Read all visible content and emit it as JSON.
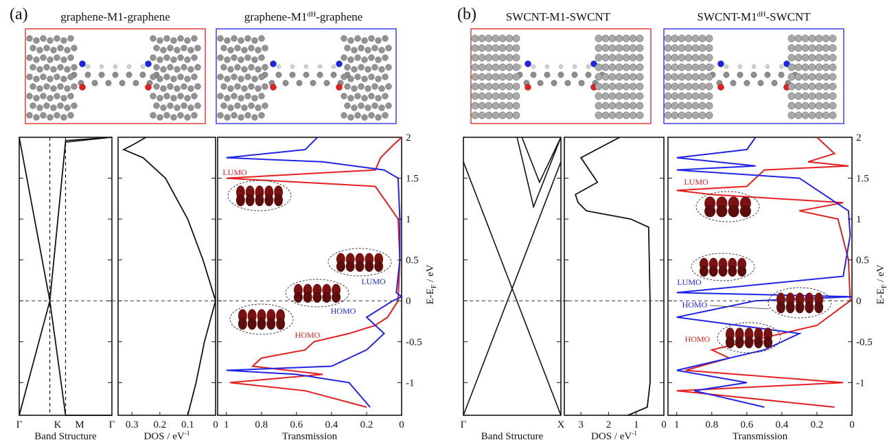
{
  "colors": {
    "red": "#e41f1f",
    "blue": "#1f24e6",
    "black": "#111111",
    "orbital": "#7a1212"
  },
  "panels": [
    {
      "label": "(a)",
      "systems": [
        {
          "title": "graphene-M1-graphene",
          "title_main": "graphene-M1",
          "title_sup": "",
          "title_tail": "-graphene",
          "frame_color": "#e41f1f"
        },
        {
          "title": "graphene-M1dH-graphene",
          "title_main": "graphene-M1",
          "title_sup": "dH",
          "title_tail": "-graphene",
          "frame_color": "#1f24e6"
        }
      ],
      "band_xticks": [
        "Γ",
        "K",
        "M",
        "Γ"
      ],
      "band_xlabel": "Band Structure",
      "dos_xticks": [
        "0.3",
        "0.2",
        "0.1",
        "0"
      ],
      "dos_xlabel": "DOS / eV",
      "dos_xlabel_sup": "-1",
      "trans_xticks": [
        "1",
        "0.8",
        "0.6",
        "0.4",
        "0.2",
        "0"
      ],
      "trans_xlabel": "Transmission",
      "yticks": [
        "2",
        "1.5",
        "1",
        "0.5",
        "0",
        "-0.5",
        "-1"
      ],
      "ylabel": "E-E",
      "ylabel_sub": "F",
      "ylabel_unit": " / eV",
      "annotations": [
        {
          "text": "LUMO",
          "color": "#e41f1f"
        },
        {
          "text": "LUMO",
          "color": "#1f24e6"
        },
        {
          "text": "HOMO",
          "color": "#1f24e6"
        },
        {
          "text": "HOMO",
          "color": "#e41f1f"
        }
      ]
    },
    {
      "label": "(b)",
      "systems": [
        {
          "title": "SWCNT-M1-SWCNT",
          "title_main": "SWCNT-M1",
          "title_sup": "",
          "title_tail": "-SWCNT",
          "frame_color": "#e41f1f"
        },
        {
          "title": "SWCNT-M1dH-SWCNT",
          "title_main": "SWCNT-M1",
          "title_sup": "dH",
          "title_tail": "-SWCNT",
          "frame_color": "#1f24e6"
        }
      ],
      "band_xticks": [
        "Γ",
        "X"
      ],
      "band_xlabel": "Band Structure",
      "dos_xticks": [
        "3",
        "2",
        "1",
        "0"
      ],
      "dos_xlabel": "DOS / eV",
      "dos_xlabel_sup": "-1",
      "trans_xticks": [
        "1",
        "0.8",
        "0.6",
        "0.4",
        "0.2",
        "0"
      ],
      "trans_xlabel": "Transmission",
      "yticks": [
        "2",
        "1.5",
        "1",
        "0.5",
        "0",
        "-0.5",
        "-1"
      ],
      "ylabel": "E-E",
      "ylabel_sub": "F",
      "ylabel_unit": " / eV",
      "annotations": [
        {
          "text": "LUMO",
          "color": "#e41f1f"
        },
        {
          "text": "LUMO",
          "color": "#1f24e6"
        },
        {
          "text": "HOMO",
          "color": "#1f24e6"
        },
        {
          "text": "HOMO",
          "color": "#e41f1f"
        }
      ]
    }
  ],
  "chart_data": [
    {
      "panel": "(a)",
      "type": "line",
      "ylim": [
        -1.4,
        2.0
      ],
      "fermi_level": 0,
      "band_structure": {
        "xlabel": "Band Structure",
        "k_points": [
          "Γ",
          "K",
          "M",
          "Γ"
        ],
        "bands": [
          {
            "k": [
              0,
              0.33,
              0.5,
              1.0
            ],
            "E": [
              -1.4,
              0.0,
              1.96,
              2.0
            ]
          },
          {
            "k": [
              0,
              0.33,
              0.5,
              1.0
            ],
            "E": [
              2.0,
              0.0,
              -1.4,
              -1.4
            ]
          },
          {
            "k": [
              0,
              0.33,
              0.5,
              1.0
            ],
            "E": [
              -1.4,
              0.0,
              1.94,
              2.0
            ]
          },
          {
            "k": [
              0,
              0.33,
              0.5,
              1.0
            ],
            "E": [
              2.0,
              0.0,
              -1.4,
              -1.4
            ]
          }
        ]
      },
      "dos": {
        "xlabel": "DOS / eV-1",
        "xlim": [
          0.35,
          0
        ],
        "E": [
          -1.4,
          -1.0,
          -0.5,
          0.0,
          0.5,
          1.0,
          1.5,
          1.75,
          1.85,
          1.92,
          2.0
        ],
        "DOS": [
          0.1,
          0.07,
          0.04,
          0.0,
          0.045,
          0.1,
          0.18,
          0.26,
          0.33,
          0.29,
          0.25
        ]
      },
      "transmission": {
        "xlabel": "Transmission",
        "xlim": [
          1.05,
          0
        ],
        "series": [
          {
            "name": "graphene-M1-graphene",
            "color": "#e41f1f",
            "E": [
              -1.3,
              -1.1,
              -1.0,
              -0.9,
              -0.8,
              -0.7,
              -0.6,
              -0.5,
              -0.4,
              -0.3,
              -0.2,
              0.0,
              0.5,
              1.0,
              1.4,
              1.5,
              1.6,
              1.75,
              1.9,
              2.0
            ],
            "T": [
              0.2,
              0.55,
              0.98,
              0.45,
              0.85,
              0.8,
              0.55,
              0.5,
              0.3,
              0.15,
              0.08,
              0.02,
              0.01,
              0.02,
              0.15,
              1.0,
              0.15,
              0.12,
              0.05,
              0.0
            ]
          },
          {
            "name": "graphene-M1dH-graphene",
            "color": "#1f24e6",
            "E": [
              -1.3,
              -1.0,
              -0.9,
              -0.85,
              -0.8,
              -0.6,
              -0.4,
              -0.2,
              0.0,
              0.05,
              0.1,
              0.5,
              1.0,
              1.5,
              1.6,
              1.7,
              1.75,
              1.85,
              2.0
            ],
            "T": [
              0.18,
              0.3,
              0.6,
              1.0,
              0.4,
              0.2,
              0.1,
              0.2,
              0.05,
              0.0,
              0.03,
              0.01,
              0.01,
              0.02,
              0.1,
              0.45,
              1.0,
              0.55,
              0.48
            ]
          }
        ],
        "labels": [
          "LUMO",
          "LUMO",
          "HOMO",
          "HOMO"
        ]
      }
    },
    {
      "panel": "(b)",
      "type": "line",
      "ylim": [
        -1.4,
        2.0
      ],
      "fermi_level": 0,
      "band_structure": {
        "xlabel": "Band Structure",
        "k_points": [
          "Γ",
          "X"
        ],
        "bands": [
          {
            "k": [
              0,
              1.0
            ],
            "E": [
              1.7,
              -1.4
            ]
          },
          {
            "k": [
              0,
              1.0
            ],
            "E": [
              -1.4,
              1.7
            ]
          },
          {
            "k": [
              0.55,
              0.72,
              1.0
            ],
            "E": [
              2.0,
              1.15,
              2.0
            ]
          },
          {
            "k": [
              0.6,
              0.78,
              1.0
            ],
            "E": [
              2.0,
              1.45,
              2.0
            ]
          }
        ]
      },
      "dos": {
        "xlabel": "DOS / eV-1",
        "xlim": [
          3.6,
          0
        ],
        "E": [
          -1.4,
          -1.3,
          -1.0,
          0.0,
          0.9,
          1.0,
          1.1,
          1.2,
          1.3,
          1.45,
          1.55,
          1.75,
          2.0
        ],
        "DOS": [
          1.3,
          0.6,
          0.5,
          0.5,
          0.55,
          1.2,
          2.8,
          3.1,
          3.2,
          2.4,
          2.6,
          3.0,
          1.6
        ]
      },
      "transmission": {
        "xlabel": "Transmission",
        "xlim": [
          1.05,
          0
        ],
        "series": [
          {
            "name": "SWCNT-M1-SWCNT",
            "color": "#e41f1f",
            "E": [
              -1.3,
              -1.1,
              -1.0,
              -0.85,
              -0.7,
              -0.6,
              -0.5,
              -0.3,
              0.0,
              0.5,
              1.0,
              1.1,
              1.2,
              1.3,
              1.35,
              1.4,
              1.6,
              1.65,
              1.7,
              1.8,
              2.0
            ],
            "T": [
              0.1,
              1.0,
              0.05,
              0.95,
              0.7,
              0.8,
              0.6,
              0.2,
              0.01,
              0.02,
              0.08,
              0.3,
              0.05,
              0.8,
              1.0,
              0.6,
              0.5,
              0.02,
              0.25,
              0.1,
              0.2
            ]
          },
          {
            "name": "SWCNT-M1dH-SWCNT",
            "color": "#1f24e6",
            "E": [
              -1.3,
              -1.1,
              -1.0,
              -0.85,
              -0.6,
              -0.4,
              -0.2,
              0.0,
              0.05,
              0.1,
              0.3,
              0.8,
              1.1,
              1.5,
              1.6,
              1.65,
              1.75,
              1.85,
              2.0
            ],
            "T": [
              0.5,
              0.9,
              0.6,
              1.0,
              0.5,
              0.3,
              1.0,
              0.55,
              0.0,
              1.0,
              0.05,
              0.01,
              0.02,
              0.3,
              1.0,
              0.55,
              1.0,
              0.6,
              0.55
            ]
          }
        ],
        "labels": [
          "LUMO",
          "LUMO",
          "HOMO",
          "HOMO"
        ]
      }
    }
  ]
}
